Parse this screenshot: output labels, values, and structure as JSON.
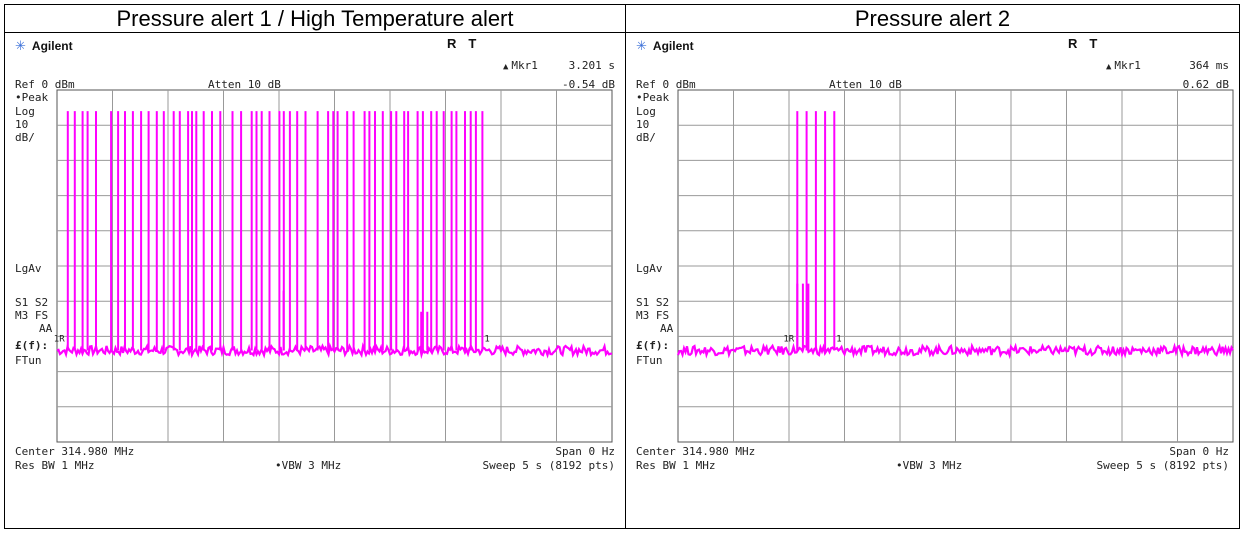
{
  "headers": {
    "left": "Pressure alert 1 / High Temperature alert",
    "right": "Pressure alert 2"
  },
  "colors": {
    "trace": "#ff00ff",
    "grid": "#999999",
    "brand_icon": "#3a6fd8"
  },
  "icons": {
    "brand": "agilent-spark-icon",
    "marker": "triangle-delta-icon"
  },
  "panels": [
    {
      "brand": "Agilent",
      "status_r": "R",
      "status_t": "T",
      "marker_label": "Mkr1",
      "marker_time": "3.201 s",
      "marker_level": "-0.54 dB",
      "ref": "Ref 0 dBm",
      "atten": "Atten 10 dB",
      "side": {
        "peak": "•Peak",
        "log": "Log",
        "scale": "10",
        "unit": "dB/",
        "lgav": "LgAv",
        "s1s2": "S1  S2",
        "m3fs": "M3  FS",
        "aa": "AA",
        "ef": "£(f):",
        "ftun": "FTun"
      },
      "center": "Center 314.980 MHz",
      "span": "Span 0 Hz",
      "resbw": "Res BW 1 MHz",
      "vbw": "•VBW 3 MHz",
      "sweep": "Sweep 5 s (8192 pts)",
      "marker_tags": [
        "1R",
        "1"
      ]
    },
    {
      "brand": "Agilent",
      "status_r": "R",
      "status_t": "T",
      "marker_label": "Mkr1",
      "marker_time": "364 ms",
      "marker_level": "0.62 dB",
      "ref": "Ref 0 dBm",
      "atten": "Atten 10 dB",
      "side": {
        "peak": "•Peak",
        "log": "Log",
        "scale": "10",
        "unit": "dB/",
        "lgav": "LgAv",
        "s1s2": "S1  S2",
        "m3fs": "M3  FS",
        "aa": "AA",
        "ef": "£(f):",
        "ftun": "FTun"
      },
      "center": "Center 314.980 MHz",
      "span": "Span 0 Hz",
      "resbw": "Res BW 1 MHz",
      "vbw": "•VBW 3 MHz",
      "sweep": "Sweep 5 s (8192 pts)",
      "marker_tags": [
        "1R",
        "1"
      ]
    }
  ],
  "chart_data": [
    {
      "type": "line",
      "x_unit": "s",
      "xlim": [
        0,
        5
      ],
      "ylim": [
        -100,
        0
      ],
      "ylabel": "dBm",
      "grid": true,
      "noise_floor_dbm": -74,
      "series": [
        {
          "pulses": [
            {
              "t": 0.097,
              "peak": -6
            },
            {
              "t": 0.16,
              "peak": -6
            },
            {
              "t": 0.231,
              "peak": -6
            },
            {
              "t": 0.276,
              "peak": -6
            },
            {
              "t": 0.351,
              "peak": -6
            },
            {
              "t": 0.487,
              "peak": -6
            },
            {
              "t": 0.55,
              "peak": -6
            },
            {
              "t": 0.613,
              "peak": -6
            },
            {
              "t": 0.684,
              "peak": -6
            },
            {
              "t": 0.758,
              "peak": -6
            },
            {
              "t": 0.825,
              "peak": -6
            },
            {
              "t": 0.899,
              "peak": -6
            },
            {
              "t": 0.962,
              "peak": -6
            },
            {
              "t": 1.051,
              "peak": -6
            },
            {
              "t": 1.106,
              "peak": -6
            },
            {
              "t": 1.181,
              "peak": -6
            },
            {
              "t": 1.216,
              "peak": -6
            },
            {
              "t": 1.255,
              "peak": -6
            },
            {
              "t": 1.322,
              "peak": -6
            },
            {
              "t": 1.396,
              "peak": -6
            },
            {
              "t": 1.471,
              "peak": -6
            },
            {
              "t": 1.581,
              "peak": -6
            },
            {
              "t": 1.659,
              "peak": -6
            },
            {
              "t": 1.754,
              "peak": -6
            },
            {
              "t": 1.797,
              "peak": -6
            },
            {
              "t": 1.844,
              "peak": -6
            },
            {
              "t": 1.914,
              "peak": -6
            },
            {
              "t": 2.004,
              "peak": -6
            },
            {
              "t": 2.043,
              "peak": -6
            },
            {
              "t": 2.098,
              "peak": -6
            },
            {
              "t": 2.164,
              "peak": -6
            },
            {
              "t": 2.239,
              "peak": -6
            },
            {
              "t": 2.348,
              "peak": -6
            },
            {
              "t": 2.442,
              "peak": -6
            },
            {
              "t": 2.489,
              "peak": -6
            },
            {
              "t": 2.528,
              "peak": -6
            },
            {
              "t": 2.614,
              "peak": -6
            },
            {
              "t": 2.672,
              "peak": -6
            },
            {
              "t": 2.771,
              "peak": -6
            },
            {
              "t": 2.814,
              "peak": -6
            },
            {
              "t": 2.865,
              "peak": -6
            },
            {
              "t": 2.935,
              "peak": -6
            },
            {
              "t": 3.01,
              "peak": -6
            },
            {
              "t": 3.057,
              "peak": -6
            },
            {
              "t": 3.128,
              "peak": -6
            },
            {
              "t": 3.163,
              "peak": -6
            },
            {
              "t": 3.249,
              "peak": -6
            },
            {
              "t": 3.296,
              "peak": -6
            },
            {
              "t": 3.371,
              "peak": -6
            },
            {
              "t": 3.421,
              "peak": -6
            },
            {
              "t": 3.484,
              "peak": -6
            },
            {
              "t": 3.555,
              "peak": -6
            },
            {
              "t": 3.598,
              "peak": -6
            },
            {
              "t": 3.676,
              "peak": -6
            },
            {
              "t": 3.727,
              "peak": -6
            },
            {
              "t": 3.774,
              "peak": -6
            },
            {
              "t": 3.832,
              "peak": -6
            },
            {
              "t": 2.041,
              "peak": -57
            },
            {
              "t": 3.281,
              "peak": -63
            },
            {
              "t": 3.336,
              "peak": -63
            }
          ]
        }
      ]
    },
    {
      "type": "line",
      "x_unit": "s",
      "xlim": [
        0,
        5
      ],
      "ylim": [
        -100,
        0
      ],
      "ylabel": "dBm",
      "grid": true,
      "noise_floor_dbm": -74,
      "series": [
        {
          "pulses": [
            {
              "t": 1.075,
              "peak": -6
            },
            {
              "t": 1.159,
              "peak": -6
            },
            {
              "t": 1.242,
              "peak": -6
            },
            {
              "t": 1.325,
              "peak": -6
            },
            {
              "t": 1.408,
              "peak": -6
            },
            {
              "t": 1.075,
              "peak": -55
            },
            {
              "t": 1.125,
              "peak": -55
            },
            {
              "t": 1.175,
              "peak": -55
            }
          ]
        }
      ]
    }
  ]
}
